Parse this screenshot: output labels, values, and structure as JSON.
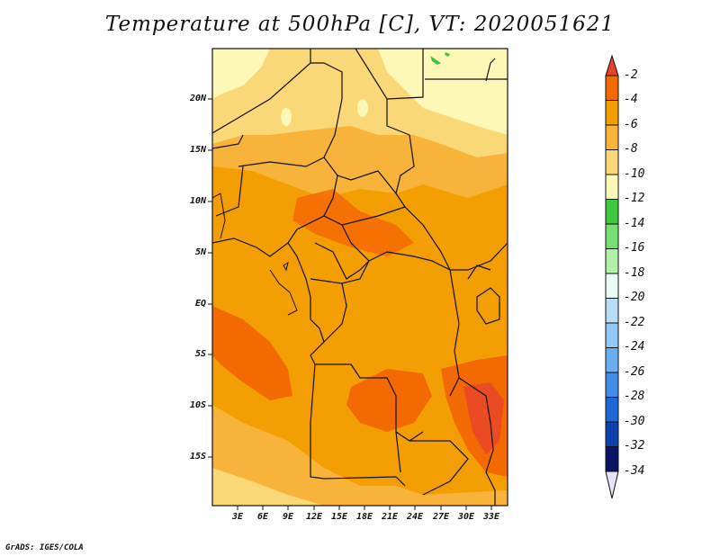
{
  "title": "Temperature at 500hPa [C], VT: 2020051621",
  "footer": "GrADS: IGES/COLA",
  "lat_labels": [
    "20N",
    "15N",
    "10N",
    "5N",
    "EQ",
    "5S",
    "10S",
    "15S"
  ],
  "lon_labels": [
    "3E",
    "6E",
    "9E",
    "12E",
    "15E",
    "18E",
    "21E",
    "24E",
    "27E",
    "30E",
    "33E"
  ],
  "colorbar": {
    "labels": [
      "-2",
      "-4",
      "-6",
      "-8",
      "-10",
      "-12",
      "-14",
      "-16",
      "-18",
      "-20",
      "-22",
      "-24",
      "-26",
      "-28",
      "-30",
      "-32",
      "-34"
    ],
    "colors": [
      "#e8432a",
      "#f46a02",
      "#f39f04",
      "#f8b43a",
      "#fad878",
      "#fdf7b8",
      "#3fc73f",
      "#76de72",
      "#b2f0aa",
      "#e8fbf4",
      "#b7ddf7",
      "#93c7f6",
      "#6aaef0",
      "#3f8de6",
      "#1f66d6",
      "#1040ae",
      "#0b1464",
      "#e6e6f8"
    ]
  },
  "map_colors": {
    "pale": "#fdf7b8",
    "light": "#fad878",
    "mid": "#f8b43a",
    "main": "#f39f04",
    "warm": "#f46a02",
    "hot": "#e8432a",
    "green": "#3fc73f",
    "border": "#111111"
  }
}
